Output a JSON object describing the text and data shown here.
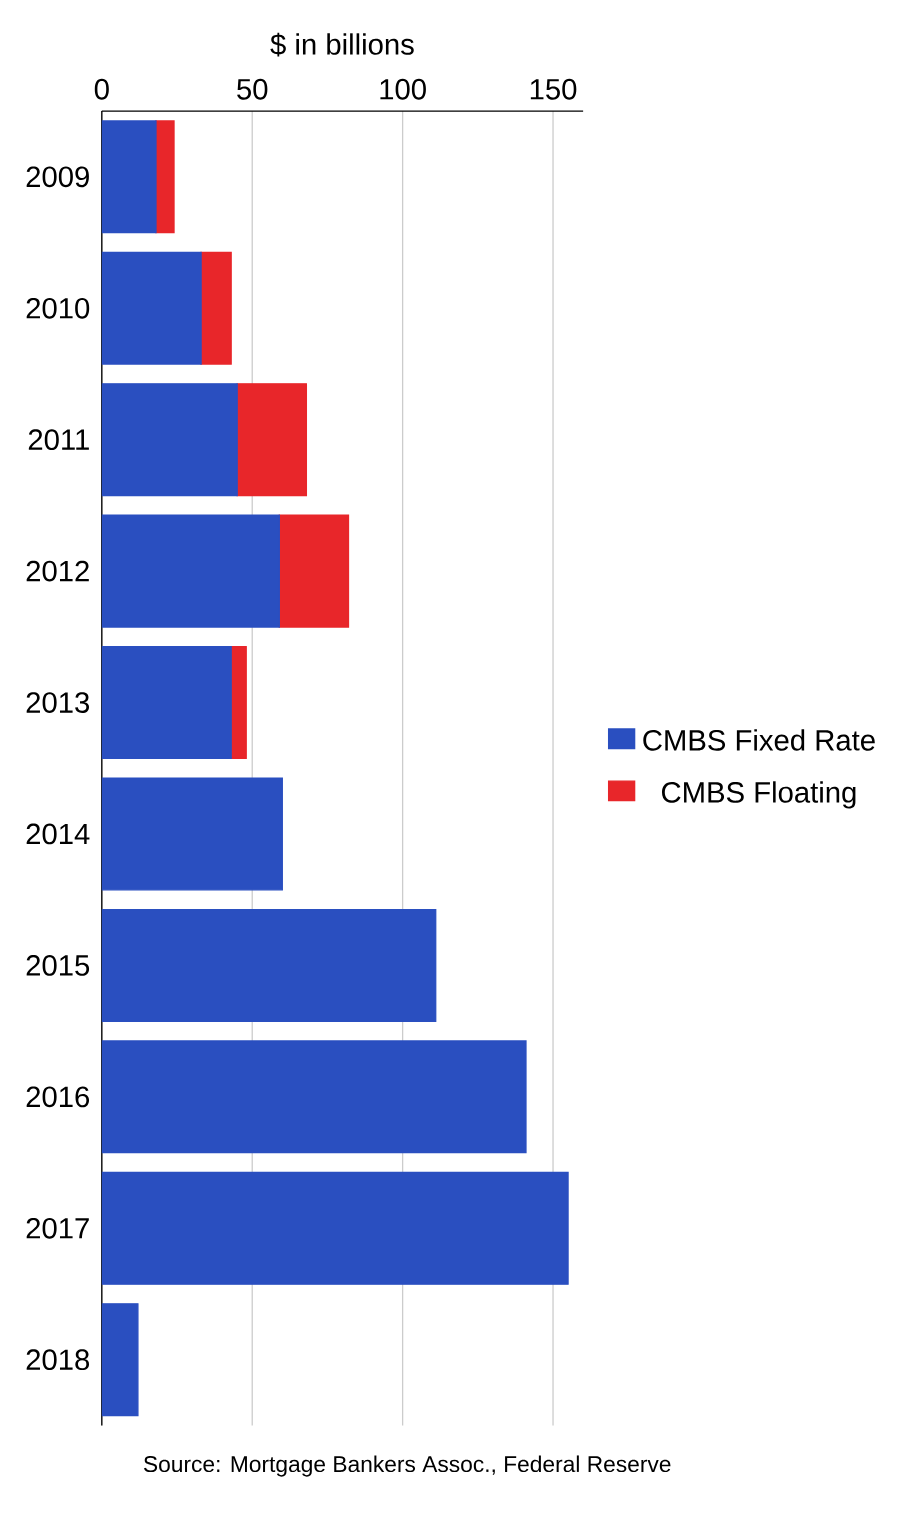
{
  "chart_data": {
    "type": "bar",
    "stacked": true,
    "xlabel": "$ in billions",
    "categories": [
      "2009",
      "2010",
      "2011",
      "2012",
      "2013",
      "2014",
      "2015",
      "2016",
      "2017",
      "2018"
    ],
    "series": [
      {
        "name": "CMBS Fixed Rate",
        "color": "#2a4fc0",
        "values": [
          18,
          33,
          45,
          59,
          43,
          60,
          111,
          141,
          155,
          12
        ]
      },
      {
        "name": "CMBS Floating",
        "color": "#e8262a",
        "values": [
          6,
          10,
          23,
          23,
          5,
          null,
          null,
          null,
          null,
          null
        ]
      }
    ],
    "orientation": "horizontal",
    "xlim": [
      0,
      160
    ],
    "xticks": [
      0,
      50,
      100,
      150
    ],
    "grid": "x",
    "legend": "right",
    "annotations": [
      "Source: Mortgage Bankers Assoc., Federal Reserve"
    ]
  }
}
